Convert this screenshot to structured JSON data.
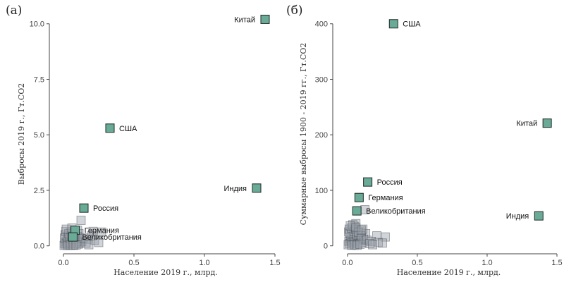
{
  "chart_data": [
    {
      "type": "scatter",
      "panel_label": "(а)",
      "title": "",
      "xlabel": "Население 2019 г., млрд.",
      "ylabel": "Выбросы 2019 г., Гт.СО2",
      "xlim": [
        -0.05,
        1.5
      ],
      "ylim": [
        -0.2,
        10.5
      ],
      "xticks": [
        0.0,
        0.5,
        1.0,
        1.5
      ],
      "xtick_labels": [
        "0.0",
        "0.5",
        "1.0",
        "1.5"
      ],
      "yticks": [
        0.0,
        2.5,
        5.0,
        7.5,
        10.0
      ],
      "ytick_labels": [
        "0.0",
        "2.5",
        "5.0",
        "7.5",
        "10.0"
      ],
      "grid": false,
      "highlight_color": "#6aab97",
      "background_color": "#9aa0a8",
      "highlighted": [
        {
          "label": "Китай",
          "x": 1.43,
          "y": 10.2,
          "label_side": "left"
        },
        {
          "label": "США",
          "x": 0.33,
          "y": 5.3,
          "label_side": "right"
        },
        {
          "label": "Индия",
          "x": 1.37,
          "y": 2.6,
          "label_side": "left"
        },
        {
          "label": "Россия",
          "x": 0.145,
          "y": 1.7,
          "label_side": "right"
        },
        {
          "label": "Германия",
          "x": 0.083,
          "y": 0.7,
          "label_side": "right"
        },
        {
          "label": "Великобритания",
          "x": 0.067,
          "y": 0.4,
          "label_side": "right"
        }
      ],
      "others": [
        {
          "x": 0.125,
          "y": 1.15
        },
        {
          "x": 0.21,
          "y": 0.65
        },
        {
          "x": 0.27,
          "y": 0.62
        },
        {
          "x": 0.2,
          "y": 0.45
        },
        {
          "x": 0.17,
          "y": 0.3
        },
        {
          "x": 0.22,
          "y": 0.25
        },
        {
          "x": 0.13,
          "y": 0.2
        },
        {
          "x": 0.11,
          "y": 0.55
        },
        {
          "x": 0.09,
          "y": 0.35
        },
        {
          "x": 0.05,
          "y": 0.6
        },
        {
          "x": 0.04,
          "y": 0.45
        },
        {
          "x": 0.06,
          "y": 0.25
        },
        {
          "x": 0.03,
          "y": 0.3
        },
        {
          "x": 0.02,
          "y": 0.2
        },
        {
          "x": 0.01,
          "y": 0.1
        },
        {
          "x": 0.015,
          "y": 0.05
        },
        {
          "x": 0.025,
          "y": 0.12
        },
        {
          "x": 0.035,
          "y": 0.08
        },
        {
          "x": 0.045,
          "y": 0.15
        },
        {
          "x": 0.055,
          "y": 0.1
        },
        {
          "x": 0.065,
          "y": 0.18
        },
        {
          "x": 0.075,
          "y": 0.05
        },
        {
          "x": 0.085,
          "y": 0.12
        },
        {
          "x": 0.095,
          "y": 0.22
        },
        {
          "x": 0.105,
          "y": 0.08
        },
        {
          "x": 0.115,
          "y": 0.14
        },
        {
          "x": 0.005,
          "y": 0.02
        },
        {
          "x": 0.008,
          "y": 0.35
        },
        {
          "x": 0.012,
          "y": 0.5
        },
        {
          "x": 0.018,
          "y": 0.65
        },
        {
          "x": 0.028,
          "y": 0.4
        },
        {
          "x": 0.038,
          "y": 0.55
        },
        {
          "x": 0.048,
          "y": 0.35
        },
        {
          "x": 0.058,
          "y": 0.45
        },
        {
          "x": 0.068,
          "y": 0.3
        },
        {
          "x": 0.078,
          "y": 0.38
        },
        {
          "x": 0.1,
          "y": 0.42
        },
        {
          "x": 0.14,
          "y": 0.35
        },
        {
          "x": 0.16,
          "y": 0.12
        },
        {
          "x": 0.18,
          "y": 0.05
        },
        {
          "x": 0.25,
          "y": 0.15
        },
        {
          "x": 0.03,
          "y": 0.02
        },
        {
          "x": 0.05,
          "y": 0.03
        },
        {
          "x": 0.07,
          "y": 0.02
        },
        {
          "x": 0.09,
          "y": 0.04
        },
        {
          "x": 0.02,
          "y": 0.75
        },
        {
          "x": 0.06,
          "y": 0.8
        },
        {
          "x": 0.1,
          "y": 0.7
        }
      ]
    },
    {
      "type": "scatter",
      "panel_label": "(б)",
      "title": "",
      "xlabel": "Население 2019 г., млрд.",
      "ylabel": "Суммарные выбросы 1900 - 2019 гг., Гт.СО2",
      "xlim": [
        -0.05,
        1.5
      ],
      "ylim": [
        -8,
        420
      ],
      "xticks": [
        0.0,
        0.5,
        1.0,
        1.5
      ],
      "xtick_labels": [
        "0.0",
        "0.5",
        "1.0",
        "1.5"
      ],
      "yticks": [
        0,
        100,
        200,
        300,
        400
      ],
      "ytick_labels": [
        "0",
        "100",
        "200",
        "300",
        "400"
      ],
      "grid": false,
      "highlight_color": "#6aab97",
      "background_color": "#9aa0a8",
      "highlighted": [
        {
          "label": "США",
          "x": 0.33,
          "y": 400,
          "label_side": "right"
        },
        {
          "label": "Китай",
          "x": 1.43,
          "y": 221,
          "label_side": "left"
        },
        {
          "label": "Россия",
          "x": 0.145,
          "y": 115,
          "label_side": "right"
        },
        {
          "label": "Германия",
          "x": 0.083,
          "y": 87,
          "label_side": "right"
        },
        {
          "label": "Великобритания",
          "x": 0.067,
          "y": 63,
          "label_side": "right"
        },
        {
          "label": "Индия",
          "x": 1.37,
          "y": 54,
          "label_side": "left"
        }
      ],
      "others": [
        {
          "x": 0.125,
          "y": 65
        },
        {
          "x": 0.21,
          "y": 18
        },
        {
          "x": 0.27,
          "y": 16
        },
        {
          "x": 0.13,
          "y": 22
        },
        {
          "x": 0.17,
          "y": 8
        },
        {
          "x": 0.22,
          "y": 6
        },
        {
          "x": 0.11,
          "y": 30
        },
        {
          "x": 0.09,
          "y": 25
        },
        {
          "x": 0.05,
          "y": 35
        },
        {
          "x": 0.04,
          "y": 28
        },
        {
          "x": 0.06,
          "y": 40
        },
        {
          "x": 0.03,
          "y": 20
        },
        {
          "x": 0.02,
          "y": 14
        },
        {
          "x": 0.01,
          "y": 8
        },
        {
          "x": 0.015,
          "y": 4
        },
        {
          "x": 0.025,
          "y": 10
        },
        {
          "x": 0.035,
          "y": 6
        },
        {
          "x": 0.045,
          "y": 12
        },
        {
          "x": 0.055,
          "y": 8
        },
        {
          "x": 0.065,
          "y": 15
        },
        {
          "x": 0.075,
          "y": 4
        },
        {
          "x": 0.085,
          "y": 10
        },
        {
          "x": 0.095,
          "y": 18
        },
        {
          "x": 0.105,
          "y": 6
        },
        {
          "x": 0.115,
          "y": 12
        },
        {
          "x": 0.005,
          "y": 2
        },
        {
          "x": 0.008,
          "y": 25
        },
        {
          "x": 0.012,
          "y": 30
        },
        {
          "x": 0.018,
          "y": 22
        },
        {
          "x": 0.028,
          "y": 32
        },
        {
          "x": 0.038,
          "y": 38
        },
        {
          "x": 0.048,
          "y": 26
        },
        {
          "x": 0.058,
          "y": 30
        },
        {
          "x": 0.068,
          "y": 20
        },
        {
          "x": 0.078,
          "y": 24
        },
        {
          "x": 0.1,
          "y": 14
        },
        {
          "x": 0.14,
          "y": 10
        },
        {
          "x": 0.16,
          "y": 4
        },
        {
          "x": 0.18,
          "y": 2
        },
        {
          "x": 0.25,
          "y": 5
        },
        {
          "x": 0.03,
          "y": 1
        },
        {
          "x": 0.05,
          "y": 2
        },
        {
          "x": 0.07,
          "y": 1
        },
        {
          "x": 0.09,
          "y": 3
        },
        {
          "x": 0.02,
          "y": 36
        },
        {
          "x": 0.06,
          "y": 33
        },
        {
          "x": 0.1,
          "y": 28
        }
      ]
    }
  ]
}
